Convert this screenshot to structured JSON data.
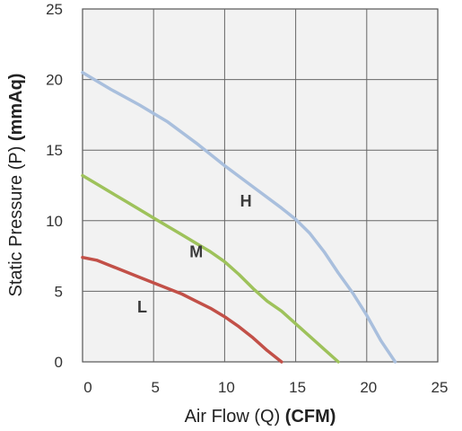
{
  "chart_data": {
    "type": "line",
    "xlabel": {
      "main": "Air Flow (Q) ",
      "unit": "(CFM)"
    },
    "ylabel": {
      "main": "Static Pressure (P) ",
      "unit": "(mmAq)"
    },
    "xlim": [
      0,
      25
    ],
    "ylim": [
      0,
      25
    ],
    "x_ticks": [
      0,
      5,
      10,
      15,
      20,
      25
    ],
    "y_ticks": [
      0,
      5,
      10,
      15,
      20,
      25
    ],
    "grid": true,
    "background": "#f2f2f2",
    "series": [
      {
        "name": "H",
        "color": "#a9bfdd",
        "label_at": [
          11.5,
          11.3
        ],
        "points": [
          [
            0,
            20.5
          ],
          [
            2,
            19.3
          ],
          [
            4,
            18.2
          ],
          [
            6,
            17.0
          ],
          [
            8,
            15.5
          ],
          [
            10,
            13.9
          ],
          [
            12,
            12.4
          ],
          [
            14,
            10.9
          ],
          [
            15,
            10.1
          ],
          [
            16,
            9.1
          ],
          [
            17,
            7.8
          ],
          [
            18,
            6.3
          ],
          [
            19,
            4.9
          ],
          [
            20,
            3.3
          ],
          [
            21,
            1.5
          ],
          [
            22,
            0
          ]
        ]
      },
      {
        "name": "M",
        "color": "#9ec25b",
        "label_at": [
          8,
          7.7
        ],
        "points": [
          [
            0,
            13.2
          ],
          [
            1,
            12.6
          ],
          [
            2,
            12.0
          ],
          [
            3,
            11.4
          ],
          [
            4,
            10.8
          ],
          [
            5,
            10.2
          ],
          [
            6,
            9.6
          ],
          [
            7,
            9.0
          ],
          [
            8,
            8.4
          ],
          [
            9,
            7.8
          ],
          [
            10,
            7.1
          ],
          [
            11,
            6.2
          ],
          [
            12,
            5.2
          ],
          [
            13,
            4.3
          ],
          [
            14,
            3.6
          ],
          [
            15,
            2.7
          ],
          [
            16,
            1.8
          ],
          [
            17,
            0.9
          ],
          [
            18,
            0
          ]
        ]
      },
      {
        "name": "L",
        "color": "#c25048",
        "label_at": [
          4.2,
          3.8
        ],
        "points": [
          [
            0,
            7.4
          ],
          [
            1,
            7.2
          ],
          [
            2,
            6.8
          ],
          [
            3,
            6.4
          ],
          [
            4,
            6.0
          ],
          [
            5,
            5.6
          ],
          [
            6,
            5.2
          ],
          [
            7,
            4.8
          ],
          [
            8,
            4.3
          ],
          [
            9,
            3.8
          ],
          [
            10,
            3.2
          ],
          [
            11,
            2.5
          ],
          [
            12,
            1.7
          ],
          [
            13,
            0.8
          ],
          [
            14,
            0
          ]
        ]
      }
    ]
  }
}
